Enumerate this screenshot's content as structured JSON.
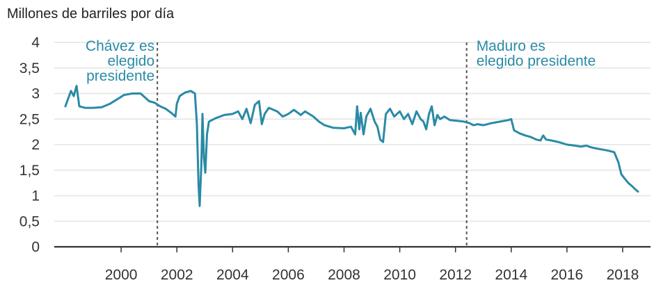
{
  "chart_data": {
    "type": "line",
    "title": "",
    "ylabel": "Millones de barriles por día",
    "xlabel": "",
    "ylim": [
      0,
      4
    ],
    "xlim": [
      1997.6,
      2019.0
    ],
    "yticks": [
      {
        "value": 0,
        "label": "0"
      },
      {
        "value": 0.5,
        "label": "0,5"
      },
      {
        "value": 1,
        "label": "1"
      },
      {
        "value": 1.5,
        "label": "1,5"
      },
      {
        "value": 2,
        "label": "2"
      },
      {
        "value": 2.5,
        "label": "2,5"
      },
      {
        "value": 3,
        "label": "3"
      },
      {
        "value": 3.5,
        "label": "3,5"
      },
      {
        "value": 4,
        "label": "4"
      }
    ],
    "xticks": [
      {
        "value": 2000,
        "label": "2000"
      },
      {
        "value": 2002,
        "label": "2002"
      },
      {
        "value": 2004,
        "label": "2004"
      },
      {
        "value": 2006,
        "label": "2006"
      },
      {
        "value": 2008,
        "label": "2008"
      },
      {
        "value": 2010,
        "label": "2010"
      },
      {
        "value": 2012,
        "label": "2012"
      },
      {
        "value": 2014,
        "label": "2014"
      },
      {
        "value": 2016,
        "label": "2016"
      },
      {
        "value": 2018,
        "label": "2018"
      }
    ],
    "grid": true,
    "line_color": "#2a8aa6",
    "annotation_color": "#2a8aa6",
    "annotations": [
      {
        "x": 2001.3,
        "lines": [
          "Chávez es",
          "elegido",
          "presidente"
        ],
        "anchor": "end"
      },
      {
        "x": 2012.4,
        "lines": [
          "Maduro es",
          "elegido presidente"
        ],
        "anchor": "start"
      }
    ],
    "series": [
      {
        "points": [
          [
            1998.0,
            2.75
          ],
          [
            1998.1,
            2.9
          ],
          [
            1998.2,
            3.05
          ],
          [
            1998.3,
            2.95
          ],
          [
            1998.4,
            3.15
          ],
          [
            1998.5,
            2.75
          ],
          [
            1998.7,
            2.72
          ],
          [
            1999.0,
            2.72
          ],
          [
            1999.3,
            2.73
          ],
          [
            1999.6,
            2.8
          ],
          [
            1999.9,
            2.9
          ],
          [
            2000.1,
            2.97
          ],
          [
            2000.4,
            3.0
          ],
          [
            2000.7,
            3.0
          ],
          [
            2000.9,
            2.9
          ],
          [
            2001.0,
            2.85
          ],
          [
            2001.2,
            2.82
          ],
          [
            2001.4,
            2.75
          ],
          [
            2001.6,
            2.7
          ],
          [
            2001.8,
            2.62
          ],
          [
            2001.95,
            2.55
          ],
          [
            2002.0,
            2.8
          ],
          [
            2002.1,
            2.95
          ],
          [
            2002.3,
            3.02
          ],
          [
            2002.5,
            3.05
          ],
          [
            2002.65,
            3.0
          ],
          [
            2002.72,
            2.4
          ],
          [
            2002.78,
            1.2
          ],
          [
            2002.82,
            0.8
          ],
          [
            2002.88,
            1.6
          ],
          [
            2002.92,
            2.6
          ],
          [
            2002.97,
            1.75
          ],
          [
            2003.02,
            1.45
          ],
          [
            2003.08,
            2.2
          ],
          [
            2003.15,
            2.45
          ],
          [
            2003.4,
            2.52
          ],
          [
            2003.7,
            2.58
          ],
          [
            2004.0,
            2.6
          ],
          [
            2004.2,
            2.65
          ],
          [
            2004.35,
            2.5
          ],
          [
            2004.5,
            2.7
          ],
          [
            2004.65,
            2.42
          ],
          [
            2004.8,
            2.78
          ],
          [
            2004.95,
            2.85
          ],
          [
            2005.05,
            2.4
          ],
          [
            2005.15,
            2.6
          ],
          [
            2005.3,
            2.72
          ],
          [
            2005.6,
            2.65
          ],
          [
            2005.8,
            2.55
          ],
          [
            2006.0,
            2.6
          ],
          [
            2006.2,
            2.68
          ],
          [
            2006.45,
            2.58
          ],
          [
            2006.6,
            2.65
          ],
          [
            2006.9,
            2.55
          ],
          [
            2007.1,
            2.45
          ],
          [
            2007.3,
            2.38
          ],
          [
            2007.6,
            2.33
          ],
          [
            2008.0,
            2.32
          ],
          [
            2008.25,
            2.35
          ],
          [
            2008.4,
            2.2
          ],
          [
            2008.47,
            2.75
          ],
          [
            2008.55,
            2.3
          ],
          [
            2008.6,
            2.62
          ],
          [
            2008.7,
            2.2
          ],
          [
            2008.8,
            2.55
          ],
          [
            2008.95,
            2.7
          ],
          [
            2009.1,
            2.45
          ],
          [
            2009.2,
            2.35
          ],
          [
            2009.3,
            2.1
          ],
          [
            2009.4,
            2.05
          ],
          [
            2009.5,
            2.6
          ],
          [
            2009.65,
            2.7
          ],
          [
            2009.8,
            2.55
          ],
          [
            2010.0,
            2.65
          ],
          [
            2010.15,
            2.5
          ],
          [
            2010.3,
            2.6
          ],
          [
            2010.45,
            2.4
          ],
          [
            2010.6,
            2.65
          ],
          [
            2010.75,
            2.5
          ],
          [
            2010.85,
            2.45
          ],
          [
            2010.95,
            2.3
          ],
          [
            2011.05,
            2.6
          ],
          [
            2011.15,
            2.75
          ],
          [
            2011.25,
            2.38
          ],
          [
            2011.35,
            2.58
          ],
          [
            2011.45,
            2.5
          ],
          [
            2011.6,
            2.55
          ],
          [
            2011.8,
            2.48
          ],
          [
            2012.0,
            2.47
          ],
          [
            2012.3,
            2.45
          ],
          [
            2012.5,
            2.42
          ],
          [
            2012.65,
            2.38
          ],
          [
            2012.8,
            2.4
          ],
          [
            2013.0,
            2.38
          ],
          [
            2013.3,
            2.42
          ],
          [
            2013.6,
            2.45
          ],
          [
            2013.9,
            2.48
          ],
          [
            2014.0,
            2.5
          ],
          [
            2014.1,
            2.28
          ],
          [
            2014.3,
            2.22
          ],
          [
            2014.5,
            2.18
          ],
          [
            2014.7,
            2.15
          ],
          [
            2014.9,
            2.1
          ],
          [
            2015.05,
            2.08
          ],
          [
            2015.15,
            2.18
          ],
          [
            2015.25,
            2.1
          ],
          [
            2015.45,
            2.08
          ],
          [
            2015.7,
            2.05
          ],
          [
            2016.0,
            2.0
          ],
          [
            2016.3,
            1.98
          ],
          [
            2016.5,
            1.96
          ],
          [
            2016.7,
            1.98
          ],
          [
            2016.85,
            1.95
          ],
          [
            2017.0,
            1.93
          ],
          [
            2017.3,
            1.9
          ],
          [
            2017.5,
            1.88
          ],
          [
            2017.7,
            1.85
          ],
          [
            2017.85,
            1.65
          ],
          [
            2017.95,
            1.42
          ],
          [
            2018.05,
            1.35
          ],
          [
            2018.2,
            1.25
          ],
          [
            2018.35,
            1.18
          ],
          [
            2018.5,
            1.1
          ],
          [
            2018.55,
            1.08
          ]
        ]
      }
    ]
  }
}
